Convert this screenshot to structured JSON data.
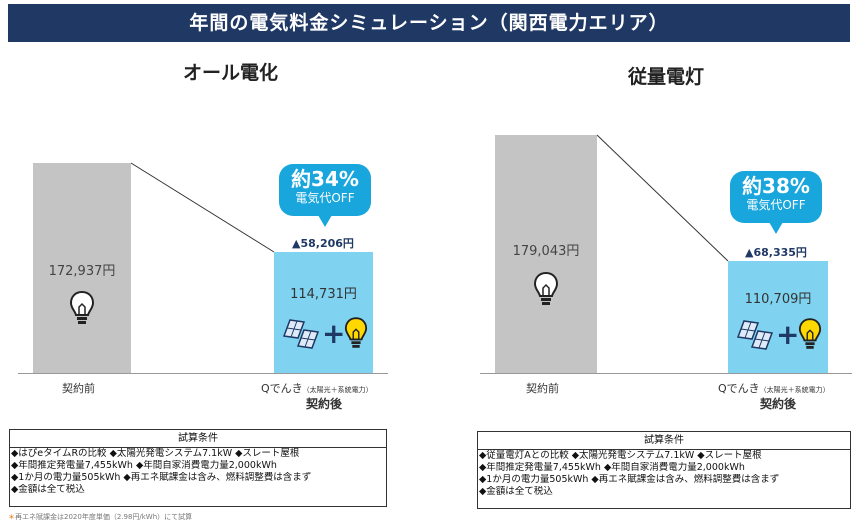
{
  "banner": {
    "title": "年間の電気料金シミュレーション（関西電力エリア）"
  },
  "panels": [
    {
      "title": "オール電化",
      "before": {
        "value": "172,937円",
        "label": "契約前"
      },
      "after": {
        "value": "114,731円",
        "label_main": "Qでんき",
        "label_sub": "（太陽光＋系統電力）",
        "label_bold": "契約後"
      },
      "bubble": {
        "pct": "約34%",
        "off": "電気代OFF"
      },
      "saving": "▲58,206円",
      "conditions": {
        "header": "試算条件",
        "lines": [
          "◆はぴeタイムRの比較 ◆太陽光発電システム7.1kW ◆スレート屋根",
          "◆年間推定発電量7,455kWh ◆年間自家消費電力量2,000kWh",
          "◆1か月の電力量505kWh ◆再エネ賦課金は含み、燃料調整費は含まず",
          "◆金額は全て税込"
        ]
      }
    },
    {
      "title": "従量電灯",
      "before": {
        "value": "179,043円",
        "label": "契約前"
      },
      "after": {
        "value": "110,709円",
        "label_main": "Qでんき",
        "label_sub": "（太陽光＋系統電力）",
        "label_bold": "契約後"
      },
      "bubble": {
        "pct": "約38%",
        "off": "電気代OFF"
      },
      "saving": "▲68,335円",
      "conditions": {
        "header": "試算条件",
        "lines": [
          "◆従量電灯Aとの比較 ◆太陽光発電システム7.1kW ◆スレート屋根",
          "◆年間推定発電量7,455kWh ◆年間自家消費電力量2,000kWh",
          "◆1か月の電力量505kWh ◆再エネ賦課金は含み、燃料調整費は含まず",
          "◆金額は全て税込"
        ]
      }
    }
  ],
  "footnote": {
    "star": "＊",
    "text": "再エネ賦課金は2020年度単価（2.98円/kWh）にて試算"
  },
  "colors": {
    "banner": "#1f3864",
    "before_bar": "#c4c4c4",
    "after_bar": "#7fd3f0",
    "bubble": "#19a6dc"
  }
}
